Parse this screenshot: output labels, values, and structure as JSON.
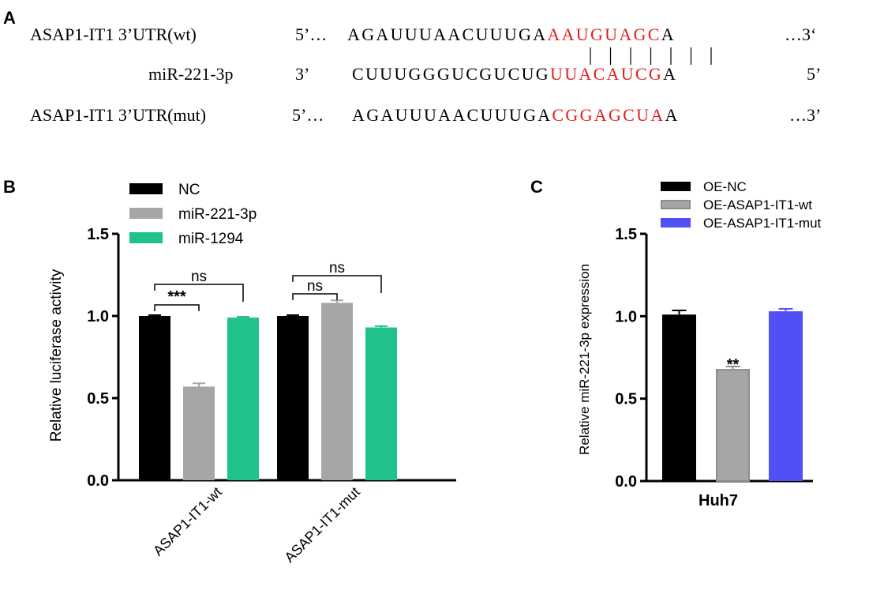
{
  "colors": {
    "black": "#000000",
    "gray": "#a6a6a9",
    "green": "#1fc28b",
    "blue": "#5050f5",
    "darkgray": "#8c8c8c",
    "red": "#e02020"
  },
  "panel_a": {
    "letter": "A",
    "rows": [
      {
        "label": "ASAP1-IT1 3’UTR(wt)",
        "prime_left": "5’…",
        "seq_black": "AGAUUUAACUUUGA",
        "seq_red": "AAUGUAGC",
        "seq_tail": "A",
        "end_text": "…3‘"
      },
      {
        "label": "miR-221-3p",
        "prime_left": "3’",
        "seq_black": "CUUUGGGUCGUCUG",
        "seq_red": "UUACAUCG",
        "seq_tail": "A",
        "end_text": "5’"
      },
      {
        "label": "ASAP1-IT1 3’UTR(mut)",
        "prime_left": "5’…",
        "seq_black": "AGAUUUAACUUUGA",
        "seq_red": "CGGAGCUA",
        "seq_tail": "A",
        "end_text": "…3’"
      }
    ],
    "pair_count": 7
  },
  "chart_data": [
    {
      "type": "bar",
      "panel": "B",
      "ylabel": "Relative luciferase activity",
      "ylim": [
        0,
        1.5
      ],
      "yticks": [
        "0.0",
        "0.5",
        "1.0",
        "1.5"
      ],
      "categories": [
        "ASAP1-IT1-wt",
        "ASAP1-IT1-mut"
      ],
      "series": [
        {
          "name": "NC",
          "color": "#000000",
          "values": [
            1.0,
            1.0
          ],
          "errors": [
            0.005,
            0.005
          ]
        },
        {
          "name": "miR-221-3p",
          "color": "#a6a6a9",
          "values": [
            0.57,
            1.08
          ],
          "errors": [
            0.02,
            0.015
          ]
        },
        {
          "name": "miR-1294",
          "color": "#1fc28b",
          "values": [
            0.99,
            0.93
          ],
          "errors": [
            0.005,
            0.008
          ]
        }
      ],
      "legend_position": "top-left",
      "grid": false,
      "annotations": [
        {
          "text": "***",
          "category": 0,
          "from_series": 0,
          "to_series": 1
        },
        {
          "text": "ns",
          "category": 0,
          "from_series": 0,
          "to_series": 2
        },
        {
          "text": "ns",
          "category": 1,
          "from_series": 0,
          "to_series": 1
        },
        {
          "text": "ns",
          "category": 1,
          "from_series": 0,
          "to_series": 2
        }
      ]
    },
    {
      "type": "bar",
      "panel": "C",
      "ylabel": "Relative miR-221-3p expression",
      "xlabel": "Huh7",
      "ylim": [
        0,
        1.5
      ],
      "yticks": [
        "0.0",
        "0.5",
        "1.0",
        "1.5"
      ],
      "series": [
        {
          "name": "OE-NC",
          "color": "#000000",
          "value": 1.01,
          "error": 0.025
        },
        {
          "name": "OE-ASAP1-IT1-wt",
          "color": "#a6a6a9",
          "value": 0.68,
          "error": 0.015
        },
        {
          "name": "OE-ASAP1-IT1-mut",
          "color": "#5050f5",
          "value": 1.03,
          "error": 0.015
        }
      ],
      "legend_position": "top",
      "grid": false,
      "annotations": [
        {
          "text": "**",
          "series_index": 1
        }
      ]
    }
  ]
}
